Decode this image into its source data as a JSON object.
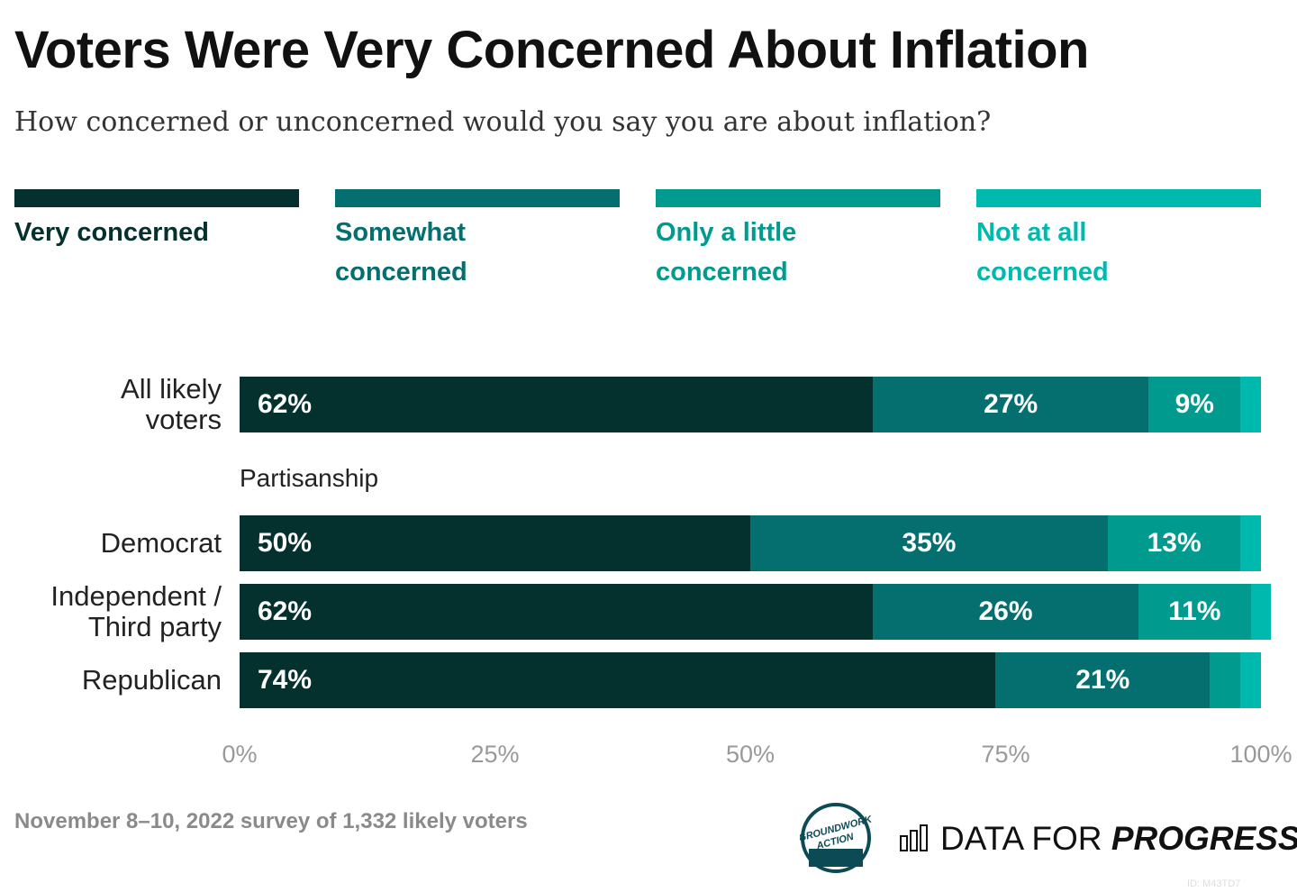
{
  "chart_data": {
    "type": "stacked-barh",
    "title": "Voters Were Very Concerned About Inflation",
    "subtitle": "How concerned or unconcerned would you say you are about inflation?",
    "categories": [
      "All likely voters",
      "Democrat",
      "Independent / Third party",
      "Republican"
    ],
    "annotations": [
      "Partisanship"
    ],
    "series": [
      {
        "name": "Very concerned",
        "color": "#04312e",
        "values": [
          62,
          50,
          62,
          74
        ],
        "value_labels": [
          "62%",
          "50%",
          "62%",
          "74%"
        ]
      },
      {
        "name": "Somewhat concerned",
        "color": "#056f70",
        "values": [
          27,
          35,
          26,
          21
        ],
        "value_labels": [
          "27%",
          "35%",
          "26%",
          "21%"
        ]
      },
      {
        "name": "Only a little concerned",
        "color": "#009a8f",
        "values": [
          9,
          13,
          11,
          3
        ],
        "value_labels": [
          "9%",
          "13%",
          "11%",
          null
        ]
      },
      {
        "name": "Not at all concerned",
        "color": "#00b9ae",
        "values": [
          2,
          2,
          2,
          2
        ],
        "value_labels": [
          null,
          null,
          null,
          null
        ]
      }
    ],
    "xlim": [
      0,
      100
    ],
    "xticks": [
      {
        "value": 0,
        "label": "0%"
      },
      {
        "value": 25,
        "label": "25%"
      },
      {
        "value": 50,
        "label": "50%"
      },
      {
        "value": 75,
        "label": "75%"
      },
      {
        "value": 100,
        "label": "100%"
      }
    ],
    "source": "November 8–10, 2022 survey of 1,332 likely voters",
    "badge": [
      "GROUNDWORK",
      "ACTION"
    ],
    "brand": [
      "DATA FOR",
      "PROGRESS"
    ],
    "id": "ID: M43TD7"
  }
}
